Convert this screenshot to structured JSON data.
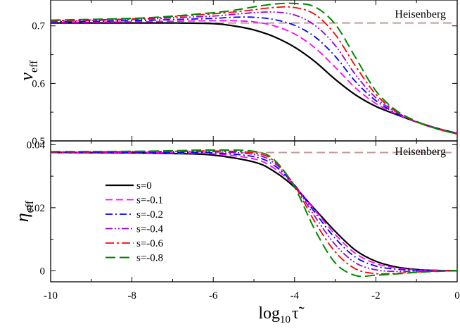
{
  "chart_data": [
    {
      "type": "line",
      "panel": "top",
      "ylabel_main": "ν",
      "ylabel_sub": "eff",
      "xlim": [
        -10,
        0
      ],
      "ylim": [
        0.5,
        0.745
      ],
      "yticks": [
        0.5,
        0.6,
        0.7
      ],
      "ytick_labels": [
        "0.5",
        "0.6",
        "0.7"
      ],
      "reference": {
        "label": "Heisenberg",
        "value": 0.705,
        "color": "#c49a9a"
      },
      "series": [
        {
          "name": "s=0",
          "color": "#000000",
          "dash": "",
          "width": 2.2,
          "x": [
            -10,
            -8,
            -7,
            -6,
            -5.5,
            -5,
            -4.5,
            -4,
            -3.5,
            -3,
            -2.5,
            -2,
            -1.5,
            -1,
            -0.5,
            0
          ],
          "y": [
            0.705,
            0.705,
            0.705,
            0.704,
            0.7,
            0.693,
            0.681,
            0.663,
            0.638,
            0.607,
            0.58,
            0.56,
            0.546,
            0.533,
            0.522,
            0.513
          ]
        },
        {
          "name": "s=-0.1",
          "color": "#ff00ff",
          "dash": "10 5",
          "width": 1.8,
          "x": [
            -10,
            -8,
            -7,
            -6,
            -5.5,
            -5,
            -4.5,
            -4,
            -3.5,
            -3,
            -2.5,
            -2,
            -1.5,
            -1,
            -0.5,
            0
          ],
          "y": [
            0.706,
            0.707,
            0.708,
            0.709,
            0.709,
            0.707,
            0.7,
            0.686,
            0.662,
            0.628,
            0.592,
            0.565,
            0.547,
            0.533,
            0.522,
            0.513
          ]
        },
        {
          "name": "s=-0.2",
          "color": "#0000ff",
          "dash": "10 4 2 4",
          "width": 1.8,
          "x": [
            -10,
            -8,
            -7,
            -6,
            -5.5,
            -5,
            -4.5,
            -4,
            -3.5,
            -3,
            -2.5,
            -2,
            -1.5,
            -1,
            -0.5,
            0
          ],
          "y": [
            0.707,
            0.709,
            0.711,
            0.713,
            0.715,
            0.715,
            0.711,
            0.701,
            0.681,
            0.647,
            0.603,
            0.57,
            0.548,
            0.533,
            0.521,
            0.513
          ]
        },
        {
          "name": "s=-0.4",
          "color": "#9900dd",
          "dash": "10 3 2 3 2 3",
          "width": 1.8,
          "x": [
            -10,
            -8,
            -7,
            -6,
            -5.5,
            -5,
            -4.5,
            -4,
            -3.5,
            -3,
            -2.5,
            -2,
            -1.5,
            -1,
            -0.5,
            0
          ],
          "y": [
            0.708,
            0.711,
            0.714,
            0.717,
            0.72,
            0.723,
            0.724,
            0.719,
            0.701,
            0.666,
            0.615,
            0.575,
            0.55,
            0.533,
            0.521,
            0.512
          ]
        },
        {
          "name": "s=-0.6",
          "color": "#ff0000",
          "dash": "12 4 3 4",
          "width": 1.8,
          "x": [
            -10,
            -8,
            -7,
            -6,
            -5.5,
            -5,
            -4.5,
            -4,
            -3.5,
            -3,
            -2.5,
            -2,
            -1.5,
            -1,
            -0.5,
            0
          ],
          "y": [
            0.709,
            0.712,
            0.716,
            0.721,
            0.724,
            0.728,
            0.732,
            0.732,
            0.72,
            0.685,
            0.63,
            0.581,
            0.551,
            0.533,
            0.521,
            0.512
          ]
        },
        {
          "name": "s=-0.8",
          "color": "#008800",
          "dash": "14 6",
          "width": 2.0,
          "x": [
            -10,
            -8,
            -7,
            -6,
            -5.5,
            -5,
            -4.5,
            -4,
            -3.5,
            -3,
            -2.5,
            -2,
            -1.5,
            -1,
            -0.5,
            0
          ],
          "y": [
            0.71,
            0.713,
            0.717,
            0.723,
            0.727,
            0.733,
            0.738,
            0.739,
            0.733,
            0.703,
            0.645,
            0.587,
            0.553,
            0.534,
            0.521,
            0.512
          ]
        }
      ]
    },
    {
      "type": "line",
      "panel": "bottom",
      "ylabel_main": "η",
      "ylabel_sub": "eff",
      "xlabel_main": "log",
      "xlabel_sub": "10",
      "xlabel_var": "τ̃",
      "xlim": [
        -10,
        0
      ],
      "ylim": [
        -0.0035,
        0.0412
      ],
      "xticks": [
        -10,
        -8,
        -6,
        -4,
        -2,
        0
      ],
      "xtick_labels": [
        "-10",
        "-8",
        "-6",
        "-4",
        "-2",
        "0"
      ],
      "yticks": [
        0,
        0.02,
        0.04
      ],
      "ytick_labels": [
        "0",
        "0.02",
        "0.04"
      ],
      "reference": {
        "label": "Heisenberg",
        "value": 0.0375,
        "color": "#c49a9a"
      },
      "series": [
        {
          "name": "s=0",
          "color": "#000000",
          "dash": "",
          "width": 2.2,
          "x": [
            -10,
            -8,
            -7,
            -6,
            -5,
            -4.5,
            -4,
            -3.5,
            -3,
            -2.5,
            -2,
            -1.5,
            -1,
            -0.5,
            0
          ],
          "y": [
            0.0375,
            0.0374,
            0.0372,
            0.0367,
            0.0345,
            0.0315,
            0.0265,
            0.0195,
            0.0125,
            0.0065,
            0.003,
            0.0012,
            0.0004,
            0.0001,
            0.0
          ]
        },
        {
          "name": "s=-0.1",
          "color": "#ff00ff",
          "dash": "10 5",
          "width": 1.8,
          "x": [
            -10,
            -8,
            -7,
            -6,
            -5,
            -4.5,
            -4,
            -3.5,
            -3,
            -2.5,
            -2,
            -1.5,
            -1,
            -0.5,
            0
          ],
          "y": [
            0.0375,
            0.0375,
            0.0374,
            0.0371,
            0.0355,
            0.0325,
            0.027,
            0.0192,
            0.0115,
            0.0055,
            0.0023,
            0.0009,
            0.0003,
            0.0001,
            0.0
          ]
        },
        {
          "name": "s=-0.2",
          "color": "#0000ff",
          "dash": "10 4 2 4",
          "width": 1.8,
          "x": [
            -10,
            -8,
            -7,
            -6,
            -5,
            -4.5,
            -4,
            -3.5,
            -3,
            -2.5,
            -2,
            -1.5,
            -1,
            -0.5,
            0
          ],
          "y": [
            0.0376,
            0.0376,
            0.0376,
            0.0374,
            0.0362,
            0.0334,
            0.0272,
            0.0185,
            0.0103,
            0.0043,
            0.0015,
            0.0005,
            0.0002,
            0.0,
            0.0
          ]
        },
        {
          "name": "s=-0.4",
          "color": "#9900dd",
          "dash": "10 3 2 3 2 3",
          "width": 1.8,
          "x": [
            -10,
            -8,
            -7,
            -6,
            -5,
            -4.5,
            -4,
            -3.5,
            -3,
            -2.5,
            -2,
            -1.5,
            -1,
            -0.5,
            0
          ],
          "y": [
            0.0376,
            0.0377,
            0.0378,
            0.0378,
            0.0369,
            0.0342,
            0.0272,
            0.0172,
            0.0083,
            0.0025,
            0.0003,
            -0.0002,
            -0.0001,
            0.0,
            0.0
          ]
        },
        {
          "name": "s=-0.6",
          "color": "#ff0000",
          "dash": "12 4 3 4",
          "width": 1.8,
          "x": [
            -10,
            -8,
            -7,
            -6,
            -5,
            -4.5,
            -4,
            -3.5,
            -3,
            -2.5,
            -2,
            -1.5,
            -1,
            -0.5,
            0
          ],
          "y": [
            0.0377,
            0.0378,
            0.0379,
            0.038,
            0.0374,
            0.0348,
            0.027,
            0.0155,
            0.006,
            0.0006,
            -0.0009,
            -0.0008,
            -0.0004,
            -0.0001,
            0.0
          ]
        },
        {
          "name": "s=-0.8",
          "color": "#008800",
          "dash": "14 6",
          "width": 2.0,
          "x": [
            -10,
            -8,
            -7,
            -6,
            -5,
            -4.5,
            -4,
            -3.5,
            -3,
            -2.5,
            -2,
            -1.5,
            -1,
            -0.5,
            0
          ],
          "y": [
            0.0378,
            0.0379,
            0.0381,
            0.0383,
            0.0379,
            0.0352,
            0.0265,
            0.013,
            0.0025,
            -0.0015,
            -0.0014,
            -0.001,
            -0.0005,
            -0.0002,
            0.0
          ]
        }
      ]
    }
  ]
}
